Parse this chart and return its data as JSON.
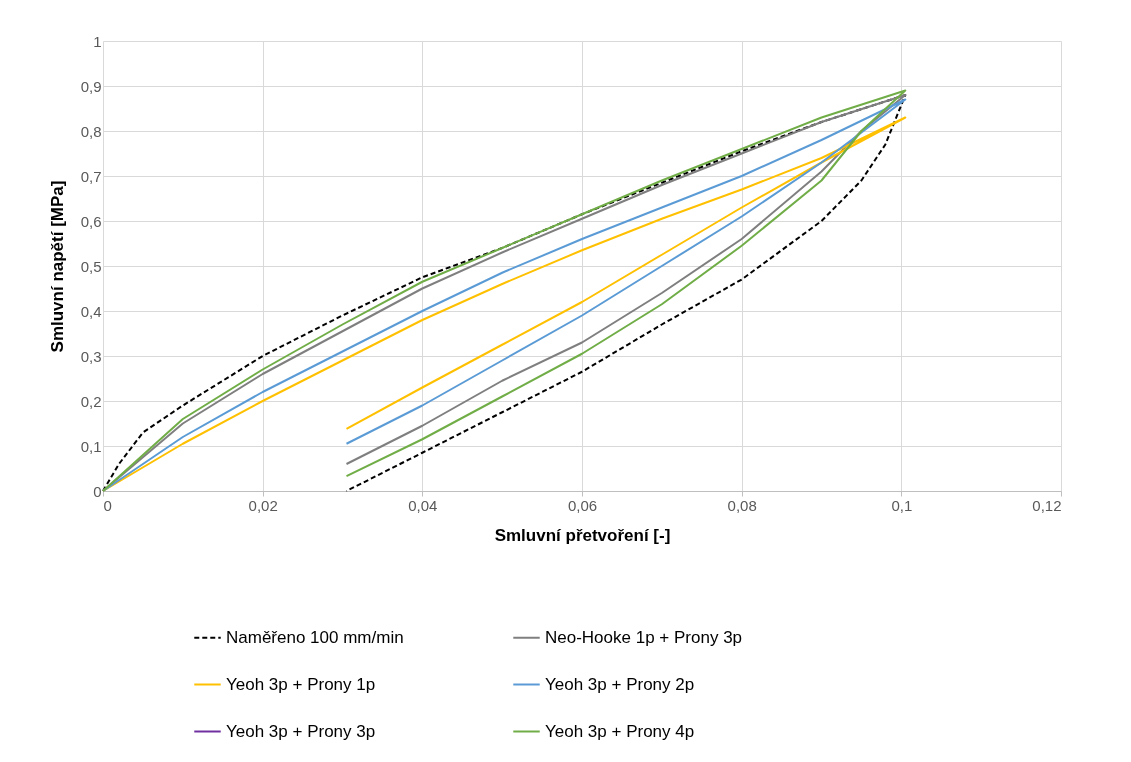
{
  "chart_data": {
    "type": "line",
    "xlabel": "Smluvní přetvoření [-]",
    "ylabel": "Smluvní napětí [MPa]",
    "xlim": [
      0,
      0.12
    ],
    "ylim": [
      0,
      1
    ],
    "xticks": [
      0,
      {
        "value": 0.02,
        "label": "0,02"
      },
      {
        "value": 0.04,
        "label": "0,04"
      },
      {
        "value": 0.06,
        "label": "0,06"
      },
      {
        "value": 0.08,
        "label": "0,08"
      },
      {
        "value": 0.1,
        "label": "0,1"
      },
      {
        "value": 0.12,
        "label": "0,12"
      }
    ],
    "yticks": [
      0,
      {
        "value": 0.1,
        "label": "0,1"
      },
      {
        "value": 0.2,
        "label": "0,2"
      },
      {
        "value": 0.3,
        "label": "0,3"
      },
      {
        "value": 0.4,
        "label": "0,4"
      },
      {
        "value": 0.5,
        "label": "0,5"
      },
      {
        "value": 0.6,
        "label": "0,6"
      },
      {
        "value": 0.7,
        "label": "0,7"
      },
      {
        "value": 0.8,
        "label": "0,8"
      },
      {
        "value": 0.9,
        "label": "0,9"
      },
      1
    ],
    "grid": true,
    "legend": "bottom",
    "marker": "none",
    "series": [
      {
        "name": "Naměřeno 100 mm/min",
        "color": "#000000",
        "line_style": "dashed",
        "x": [
          0,
          0.002,
          0.005,
          0.01,
          0.02,
          0.03,
          0.04,
          0.05,
          0.06,
          0.07,
          0.08,
          0.09,
          0.1005,
          0.098,
          0.095,
          0.09,
          0.08,
          0.07,
          0.06,
          0.05,
          0.04,
          0.0305
        ],
        "values": [
          0,
          0.06,
          0.13,
          0.19,
          0.3,
          0.39,
          0.475,
          0.54,
          0.615,
          0.685,
          0.755,
          0.82,
          0.88,
          0.77,
          0.69,
          0.6,
          0.47,
          0.37,
          0.265,
          0.175,
          0.085,
          0
        ]
      },
      {
        "name": "Neo-Hooke 1p + Prony 3p",
        "color": "#7f7f7f",
        "line_style": "solid",
        "x": [
          0,
          0.01,
          0.02,
          0.03,
          0.04,
          0.05,
          0.06,
          0.07,
          0.08,
          0.09,
          0.1005,
          0.095,
          0.09,
          0.08,
          0.07,
          0.06,
          0.05,
          0.04,
          0.0305
        ],
        "values": [
          0,
          0.15,
          0.26,
          0.355,
          0.45,
          0.53,
          0.605,
          0.68,
          0.75,
          0.82,
          0.88,
          0.8,
          0.71,
          0.56,
          0.44,
          0.33,
          0.245,
          0.145,
          0.06
        ]
      },
      {
        "name": "Yeoh 3p + Prony 1p",
        "color": "#ffc000",
        "line_style": "solid",
        "x": [
          0,
          0.01,
          0.02,
          0.03,
          0.04,
          0.05,
          0.06,
          0.07,
          0.08,
          0.09,
          0.1005,
          0.09,
          0.08,
          0.07,
          0.06,
          0.05,
          0.04,
          0.0305
        ],
        "values": [
          0,
          0.105,
          0.2,
          0.29,
          0.38,
          0.46,
          0.535,
          0.605,
          0.67,
          0.74,
          0.83,
          0.73,
          0.63,
          0.525,
          0.42,
          0.325,
          0.23,
          0.138
        ]
      },
      {
        "name": "Yeoh 3p + Prony 2p",
        "color": "#5b9bd5",
        "line_style": "solid",
        "x": [
          0,
          0.01,
          0.02,
          0.03,
          0.04,
          0.05,
          0.06,
          0.07,
          0.08,
          0.09,
          0.1005,
          0.09,
          0.08,
          0.07,
          0.06,
          0.05,
          0.04,
          0.0305
        ],
        "values": [
          0,
          0.12,
          0.22,
          0.31,
          0.4,
          0.485,
          0.56,
          0.63,
          0.7,
          0.78,
          0.87,
          0.73,
          0.61,
          0.5,
          0.39,
          0.29,
          0.19,
          0.105
        ]
      },
      {
        "name": "Yeoh 3p + Prony 3p",
        "color": "#7030a0",
        "line_style": "solid"
      },
      {
        "name": "Yeoh 3p + Prony 4p",
        "color": "#70ad47",
        "line_style": "solid",
        "x": [
          0,
          0.01,
          0.02,
          0.03,
          0.04,
          0.05,
          0.06,
          0.07,
          0.08,
          0.09,
          0.1005,
          0.095,
          0.09,
          0.08,
          0.07,
          0.06,
          0.05,
          0.04,
          0.0305
        ],
        "values": [
          0,
          0.16,
          0.27,
          0.37,
          0.465,
          0.54,
          0.615,
          0.69,
          0.76,
          0.83,
          0.89,
          0.8,
          0.69,
          0.545,
          0.415,
          0.305,
          0.21,
          0.115,
          0.033
        ]
      }
    ]
  }
}
